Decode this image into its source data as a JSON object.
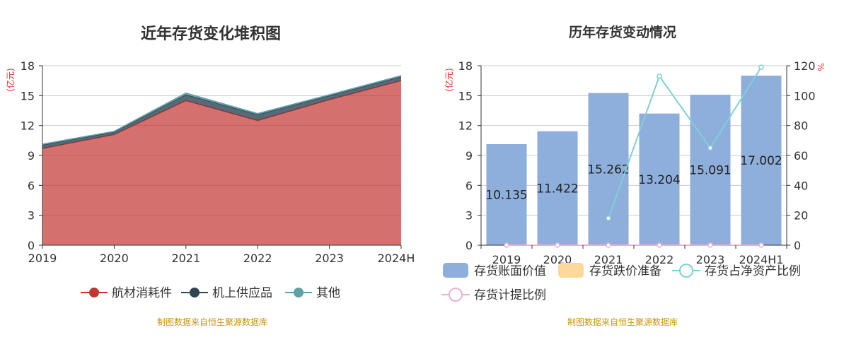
{
  "chart_data": [
    {
      "type": "area",
      "title": "近年存货变化堆积图",
      "ylabel": "(亿元)",
      "categories": [
        "2019",
        "2020",
        "2021",
        "2022",
        "2023",
        "2024H"
      ],
      "ylim": [
        0,
        18
      ],
      "yticks": [
        "0",
        "3",
        "6",
        "9",
        "12",
        "15",
        "18"
      ],
      "grid": true,
      "legend_position": "bottom",
      "series": [
        {
          "name": "航材消耗件",
          "color": "#c23531",
          "values": [
            9.7,
            11.1,
            14.5,
            12.5,
            14.6,
            16.5
          ]
        },
        {
          "name": "机上供应品",
          "color": "#2f4554",
          "values": [
            0.35,
            0.25,
            0.6,
            0.6,
            0.4,
            0.4
          ]
        },
        {
          "name": "其他",
          "color": "#61a0a8",
          "values": [
            0.085,
            0.072,
            0.162,
            0.104,
            0.091,
            0.102
          ]
        }
      ],
      "source": "制图数据来自恒生聚源数据库"
    },
    {
      "type": "bar",
      "title": "历年存货变动情况",
      "ylabel": "(亿元)",
      "y2label": "%",
      "categories": [
        "2019",
        "2020",
        "2021",
        "2022",
        "2023",
        "2024H1"
      ],
      "ylim": [
        0,
        18
      ],
      "yticks": [
        "0",
        "3",
        "6",
        "9",
        "12",
        "15",
        "18"
      ],
      "y2lim": [
        0,
        120
      ],
      "y2ticks": [
        "0",
        "20",
        "40",
        "60",
        "80",
        "100",
        "120"
      ],
      "grid": true,
      "legend_position": "bottom",
      "series": [
        {
          "name": "存货账面价值",
          "kind": "bar",
          "axis": "left",
          "color": "#8eaedb",
          "values": [
            10.135,
            11.422,
            15.262,
            13.204,
            15.091,
            17.002
          ],
          "labels": [
            "10.135",
            "11.422",
            "15.262",
            "13.204",
            "15.091",
            "17.002"
          ]
        },
        {
          "name": "存货跌价准备",
          "kind": "bar",
          "axis": "left",
          "color": "#fcd99a",
          "values": [
            0,
            0,
            0,
            0,
            0,
            0
          ]
        },
        {
          "name": "存货占净资产比例",
          "kind": "line",
          "axis": "right",
          "color": "#7fd0d8",
          "values": [
            null,
            null,
            18,
            113,
            65,
            119
          ]
        },
        {
          "name": "存货计提比例",
          "kind": "line",
          "axis": "right",
          "color": "#e9b0d2",
          "values": [
            0,
            0,
            0,
            0,
            0,
            0
          ]
        }
      ],
      "source": "制图数据来自恒生聚源数据库"
    }
  ]
}
